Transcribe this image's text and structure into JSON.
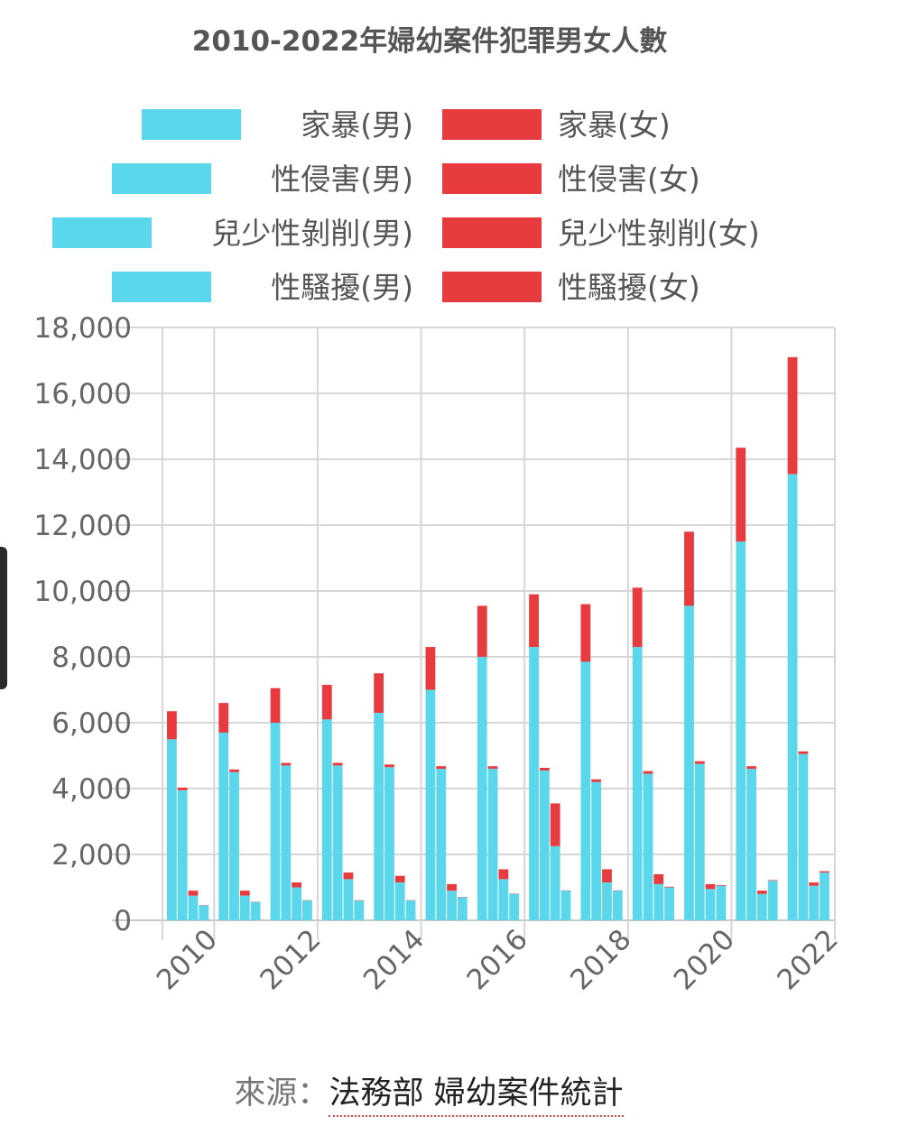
{
  "source": {
    "prefix": "來源：",
    "link_text": "法務部 婦幼案件統計"
  },
  "colors": {
    "male": "#5bd7ec",
    "female": "#e83b3f"
  },
  "chart_data": {
    "type": "bar",
    "stacked": true,
    "title": "2010-2022年婦幼案件犯罪男女人數",
    "legend_position": "top",
    "grid": true,
    "ylim": [
      0,
      18000
    ],
    "yticks": [
      "0",
      "2,000",
      "4,000",
      "6,000",
      "8,000",
      "10,000",
      "12,000",
      "14,000",
      "16,000",
      "18,000"
    ],
    "ytick_values": [
      0,
      2000,
      4000,
      6000,
      8000,
      10000,
      12000,
      14000,
      16000,
      18000
    ],
    "xticks": [
      "2010",
      "2012",
      "2014",
      "2016",
      "2018",
      "2020",
      "2022"
    ],
    "categories": [
      "2010",
      "2011",
      "2012",
      "2013",
      "2014",
      "2015",
      "2016",
      "2017",
      "2018",
      "2019",
      "2020",
      "2021",
      "2022"
    ],
    "legend": [
      {
        "label": "家暴(男)",
        "color": "#5bd7ec"
      },
      {
        "label": "家暴(女)",
        "color": "#e83b3f"
      },
      {
        "label": "性侵害(男)",
        "color": "#5bd7ec"
      },
      {
        "label": "性侵害(女)",
        "color": "#e83b3f"
      },
      {
        "label": "兒少性剝削(男)",
        "color": "#5bd7ec"
      },
      {
        "label": "兒少性剝削(女)",
        "color": "#e83b3f"
      },
      {
        "label": "性騷擾(男)",
        "color": "#5bd7ec"
      },
      {
        "label": "性騷擾(女)",
        "color": "#e83b3f"
      }
    ],
    "series": [
      {
        "name": "家暴(男)",
        "group": "家暴",
        "values": [
          5500,
          5700,
          6000,
          6100,
          6300,
          7000,
          8000,
          8300,
          7850,
          8300,
          9550,
          11500,
          13550
        ]
      },
      {
        "name": "家暴(女)",
        "group": "家暴",
        "values": [
          850,
          900,
          1050,
          1050,
          1200,
          1300,
          1550,
          1600,
          1750,
          1800,
          2250,
          2850,
          3550
        ]
      },
      {
        "name": "性侵害(男)",
        "group": "性侵害",
        "values": [
          3950,
          4500,
          4700,
          4700,
          4650,
          4600,
          4600,
          4550,
          4200,
          4450,
          4750,
          4600,
          5050
        ]
      },
      {
        "name": "性侵害(女)",
        "group": "性侵害",
        "values": [
          80,
          80,
          80,
          80,
          80,
          80,
          80,
          80,
          80,
          80,
          80,
          80,
          80
        ]
      },
      {
        "name": "兒少性剝削(男)",
        "group": "兒少性剝削",
        "values": [
          750,
          750,
          1000,
          1250,
          1150,
          900,
          1250,
          2250,
          1150,
          1100,
          950,
          800,
          1050
        ]
      },
      {
        "name": "兒少性剝削(女)",
        "group": "兒少性剝削",
        "values": [
          150,
          150,
          150,
          200,
          200,
          200,
          300,
          1300,
          400,
          300,
          150,
          100,
          100
        ]
      },
      {
        "name": "性騷擾(男)",
        "group": "性騷擾",
        "values": [
          450,
          550,
          600,
          600,
          600,
          700,
          800,
          900,
          900,
          1000,
          1050,
          1200,
          1450
        ]
      },
      {
        "name": "性騷擾(女)",
        "group": "性騷擾",
        "values": [
          10,
          10,
          10,
          10,
          10,
          10,
          10,
          10,
          10,
          20,
          20,
          20,
          40
        ]
      }
    ]
  }
}
